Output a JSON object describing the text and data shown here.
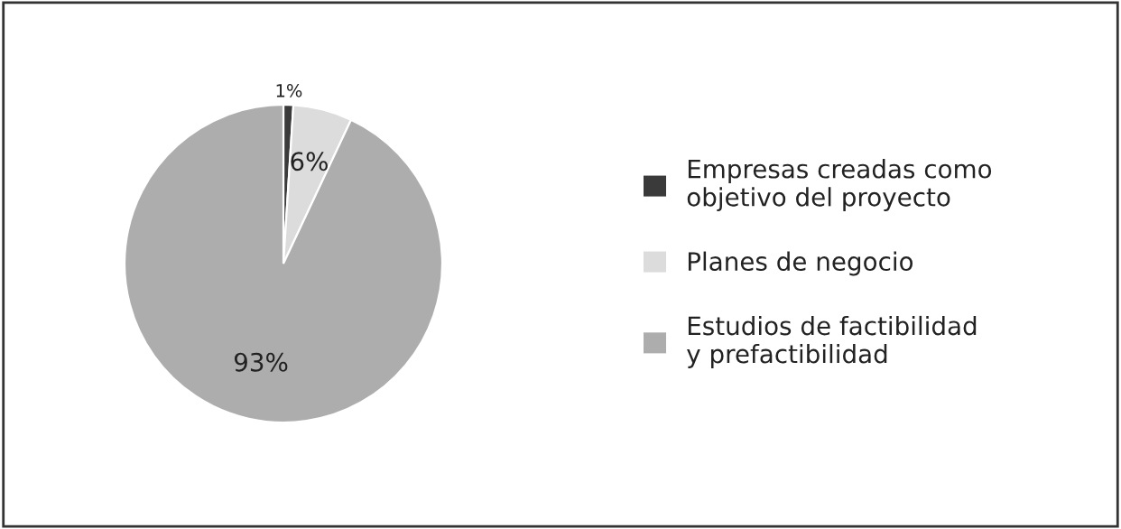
{
  "chart_data": {
    "type": "pie",
    "categories": [
      "Empresas creadas como\nobjetivo del proyecto",
      "Planes de negocio",
      "Estudios de factibilidad\ny prefactibilidad"
    ],
    "values": [
      1,
      6,
      93
    ],
    "value_labels": [
      "1%",
      "6%",
      "93%"
    ],
    "colors": [
      "#3a3a3a",
      "#dcdcdc",
      "#adadad"
    ],
    "legend": "right"
  }
}
